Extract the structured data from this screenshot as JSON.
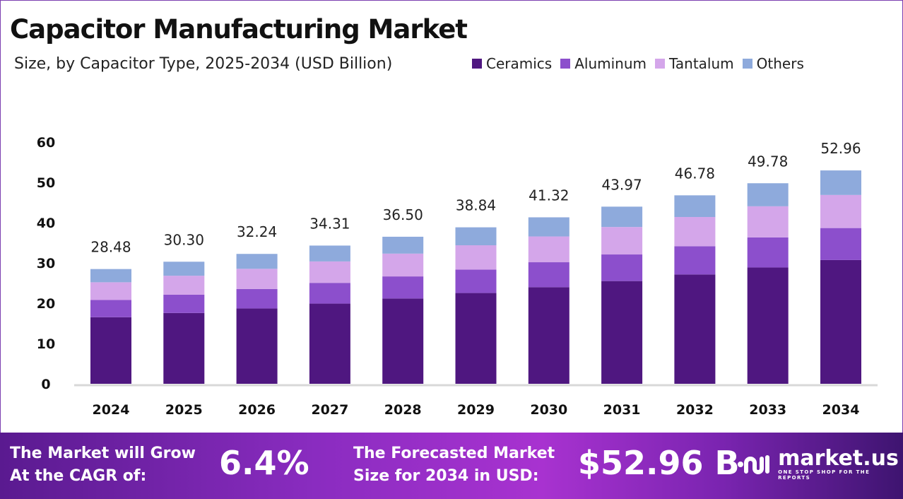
{
  "title": "Capacitor Manufacturing Market",
  "subtitle": "Size, by Capacitor Type, 2025-2034 (USD Billion)",
  "colors": {
    "Ceramics": "#4f1780",
    "Aluminum": "#8c4fcc",
    "Tantalum": "#d4a6ea",
    "Others": "#8eaadc"
  },
  "chart_data": {
    "type": "bar",
    "stacked": true,
    "categories": [
      "2024",
      "2025",
      "2026",
      "2027",
      "2028",
      "2029",
      "2030",
      "2031",
      "2032",
      "2033",
      "2034"
    ],
    "series": [
      {
        "name": "Ceramics",
        "values": [
          16.52,
          17.57,
          18.7,
          19.9,
          21.17,
          22.53,
          23.97,
          25.5,
          27.13,
          28.87,
          30.72
        ]
      },
      {
        "name": "Aluminum",
        "values": [
          4.27,
          4.55,
          4.84,
          5.15,
          5.48,
          5.83,
          6.2,
          6.6,
          7.02,
          7.47,
          7.94
        ]
      },
      {
        "name": "Tantalum",
        "values": [
          4.41,
          4.7,
          5.0,
          5.32,
          5.66,
          6.02,
          6.4,
          6.82,
          7.25,
          7.72,
          8.21
        ]
      },
      {
        "name": "Others",
        "values": [
          3.28,
          3.48,
          3.7,
          3.94,
          4.19,
          4.46,
          4.75,
          5.05,
          5.38,
          5.72,
          6.09
        ]
      }
    ],
    "totals": [
      "28.48",
      "30.30",
      "32.24",
      "34.31",
      "36.50",
      "38.84",
      "41.32",
      "43.97",
      "46.78",
      "49.78",
      "52.96"
    ],
    "yticks": [
      "0",
      "10",
      "20",
      "30",
      "40",
      "50",
      "60"
    ],
    "ylim": [
      0,
      60
    ],
    "grid": false,
    "legend": "top-right"
  },
  "footer": {
    "cagr_label_1": "The Market will Grow",
    "cagr_label_2": "At the CAGR of:",
    "cagr_value": "6.4%",
    "forecast_label_1": "The Forecasted Market",
    "forecast_label_2": "Size for 2034 in USD:",
    "forecast_value": "$52.96 B",
    "brand": "market.us",
    "tagline": "ONE STOP SHOP FOR THE REPORTS"
  }
}
